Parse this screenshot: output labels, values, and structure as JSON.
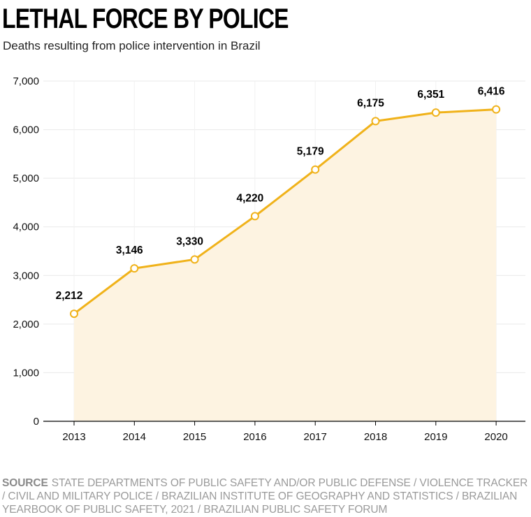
{
  "title": "LETHAL FORCE BY POLICE",
  "subtitle": "Deaths resulting from police intervention in Brazil",
  "source_label": "SOURCE",
  "source_text": "STATE DEPARTMENTS OF PUBLIC SAFETY AND/OR PUBLIC DEFENSE / VIOLENCE TRACKER / CIVIL AND MILITARY POLICE / BRAZILIAN INSTITUTE OF GEOGRAPHY AND STATISTICS / BRAZILIAN YEARBOOK OF PUBLIC SAFETY, 2021 / BRAZILIAN PUBLIC SAFETY FORUM",
  "colors": {
    "line": "#f0b21a",
    "area": "#fdf3e1",
    "grid": "#e9e9e9",
    "text": "#000000"
  },
  "chart_data": {
    "type": "line",
    "x": [
      "2013",
      "2014",
      "2015",
      "2016",
      "2017",
      "2018",
      "2019",
      "2020"
    ],
    "values": [
      2212,
      3146,
      3330,
      4220,
      5179,
      6175,
      6351,
      6416
    ],
    "data_labels": [
      "2,212",
      "3,146",
      "3,330",
      "4,220",
      "5,179",
      "6,175",
      "6,351",
      "6,416"
    ],
    "ylim": [
      0,
      7000
    ],
    "yticks": [
      0,
      1000,
      2000,
      3000,
      4000,
      5000,
      6000,
      7000
    ],
    "ytick_labels": [
      "0",
      "1,000",
      "2,000",
      "3,000",
      "4,000",
      "5,000",
      "6,000",
      "7,000"
    ],
    "grid": true,
    "area_fill": true,
    "xlabel": "",
    "ylabel": ""
  }
}
